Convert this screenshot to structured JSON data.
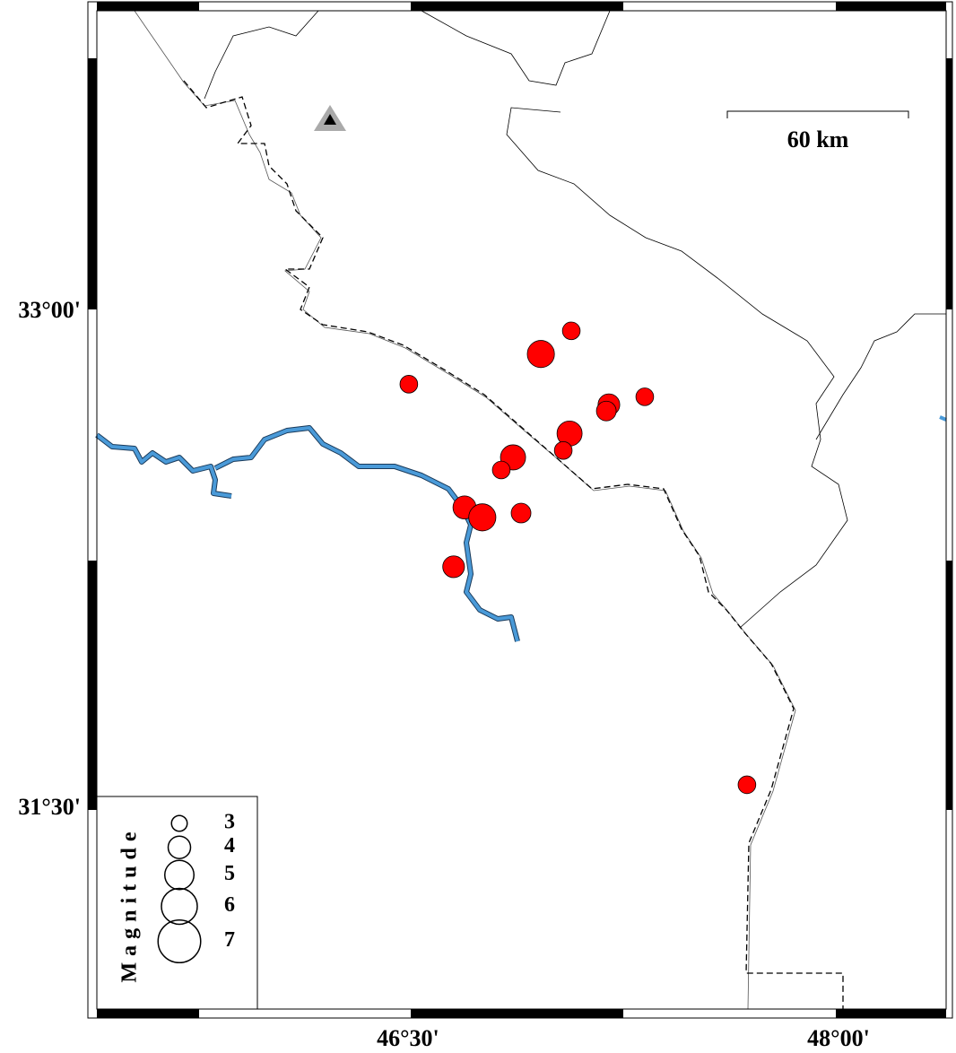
{
  "map": {
    "xlim": [
      45.416,
      48.375
    ],
    "ylim": [
      30.896,
      33.909
    ],
    "xticks": [
      {
        "value": 46.5,
        "label": "46°30'"
      },
      {
        "value": 48,
        "label": "48°00'"
      }
    ],
    "yticks": [
      {
        "value": 31.5,
        "label": "31°30'"
      },
      {
        "value": 33,
        "label": "33°00'"
      }
    ],
    "scale_label": "60 km",
    "legend": {
      "title": "Magnitude",
      "magnitudes": [
        3,
        4,
        5,
        6,
        7
      ]
    },
    "events": {
      "color": "#ff0000",
      "lon": [
        47.069,
        46.963,
        46.503,
        47.325,
        47.2,
        47.191,
        47.063,
        47.041,
        46.866,
        46.825,
        46.697,
        46.759,
        46.894,
        46.659,
        47.681
      ],
      "lat": [
        32.943,
        32.873,
        32.782,
        32.744,
        32.72,
        32.701,
        32.633,
        32.582,
        32.561,
        32.523,
        32.41,
        32.38,
        32.393,
        32.231,
        31.573
      ],
      "magnitude": [
        3.3,
        4.7,
        3.3,
        3.3,
        3.9,
        3.6,
        4.4,
        3.3,
        4.4,
        3.3,
        4.1,
        4.7,
        3.6,
        3.9,
        3.3
      ]
    }
  }
}
